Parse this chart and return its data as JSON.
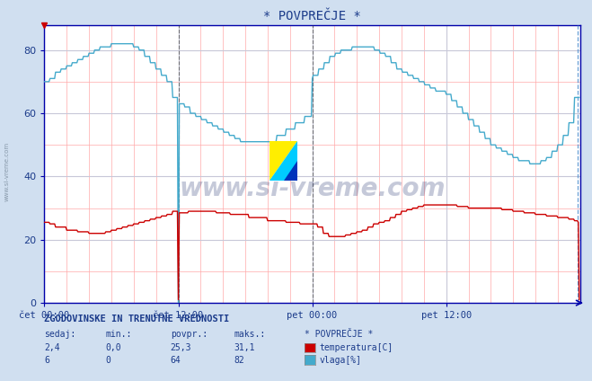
{
  "title": "* POVPREČJE *",
  "bg_color": "#d0dff0",
  "plot_bg_color": "#ffffff",
  "grid_minor_color": "#ffaaaa",
  "grid_major_color": "#c8c8d8",
  "temp_color": "#cc0000",
  "hum_color": "#44aacc",
  "dashed_color_mid": "#000000",
  "dashed_color_end": "#4488cc",
  "axis_color": "#0000aa",
  "text_color": "#1a3a8a",
  "ylim": [
    0,
    88
  ],
  "xlim": [
    0,
    576
  ],
  "yticks": [
    0,
    20,
    40,
    60,
    80
  ],
  "xtick_pos": [
    0,
    144,
    288,
    432
  ],
  "xtick_labels": [
    "čet 00:00",
    "čet 12:00",
    "pet 00:00",
    "pet 12:00"
  ],
  "watermark": "www.si-vreme.com",
  "footer_title": "ZGODOVINSKE IN TRENUTNE VREDNOSTI",
  "col_headers": [
    "sedaj:",
    "min.:",
    "povpr.:",
    "maks.:",
    "* POVPREČJE *"
  ],
  "temp_row": [
    "2,4",
    "0,0",
    "25,3",
    "31,1"
  ],
  "hum_row": [
    "6",
    "0",
    "64",
    "82"
  ],
  "temp_legend": "temperatura[C]",
  "hum_legend": "vlaga[%]"
}
